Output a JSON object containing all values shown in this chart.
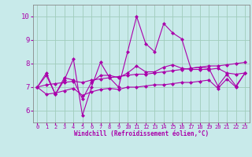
{
  "xlabel": "Windchill (Refroidissement éolien,°C)",
  "background_color": "#c8eaea",
  "grid_color": "#a0ccbb",
  "line_color": "#aa00aa",
  "ylim": [
    5.5,
    10.5
  ],
  "xlim": [
    -0.5,
    23.5
  ],
  "x_ticks": [
    0,
    1,
    2,
    3,
    4,
    5,
    6,
    7,
    8,
    9,
    10,
    11,
    12,
    13,
    14,
    15,
    16,
    17,
    18,
    19,
    20,
    21,
    22,
    23
  ],
  "y_ticks": [
    6,
    7,
    8,
    9,
    10
  ],
  "series1": [
    7.0,
    7.5,
    6.7,
    7.3,
    8.2,
    5.8,
    7.0,
    8.05,
    7.4,
    7.0,
    8.5,
    10.0,
    8.85,
    8.5,
    9.7,
    9.3,
    9.05,
    7.8,
    7.85,
    7.8,
    7.05,
    7.55,
    7.05,
    7.6
  ],
  "series2": [
    7.0,
    7.6,
    6.7,
    7.4,
    7.3,
    6.5,
    7.2,
    7.5,
    7.5,
    7.4,
    7.6,
    7.9,
    7.65,
    7.65,
    7.85,
    7.95,
    7.8,
    7.75,
    7.75,
    7.75,
    7.8,
    7.6,
    7.55,
    7.6
  ],
  "series3": [
    7.0,
    7.1,
    7.15,
    7.2,
    7.25,
    7.2,
    7.3,
    7.35,
    7.4,
    7.45,
    7.5,
    7.55,
    7.55,
    7.6,
    7.65,
    7.7,
    7.75,
    7.8,
    7.85,
    7.9,
    7.9,
    7.95,
    8.0,
    8.05
  ],
  "series4": [
    7.0,
    6.7,
    6.75,
    6.85,
    6.95,
    6.65,
    6.8,
    6.9,
    6.95,
    6.9,
    7.0,
    7.0,
    7.05,
    7.1,
    7.1,
    7.15,
    7.2,
    7.2,
    7.25,
    7.3,
    6.95,
    7.35,
    7.0,
    7.6
  ]
}
